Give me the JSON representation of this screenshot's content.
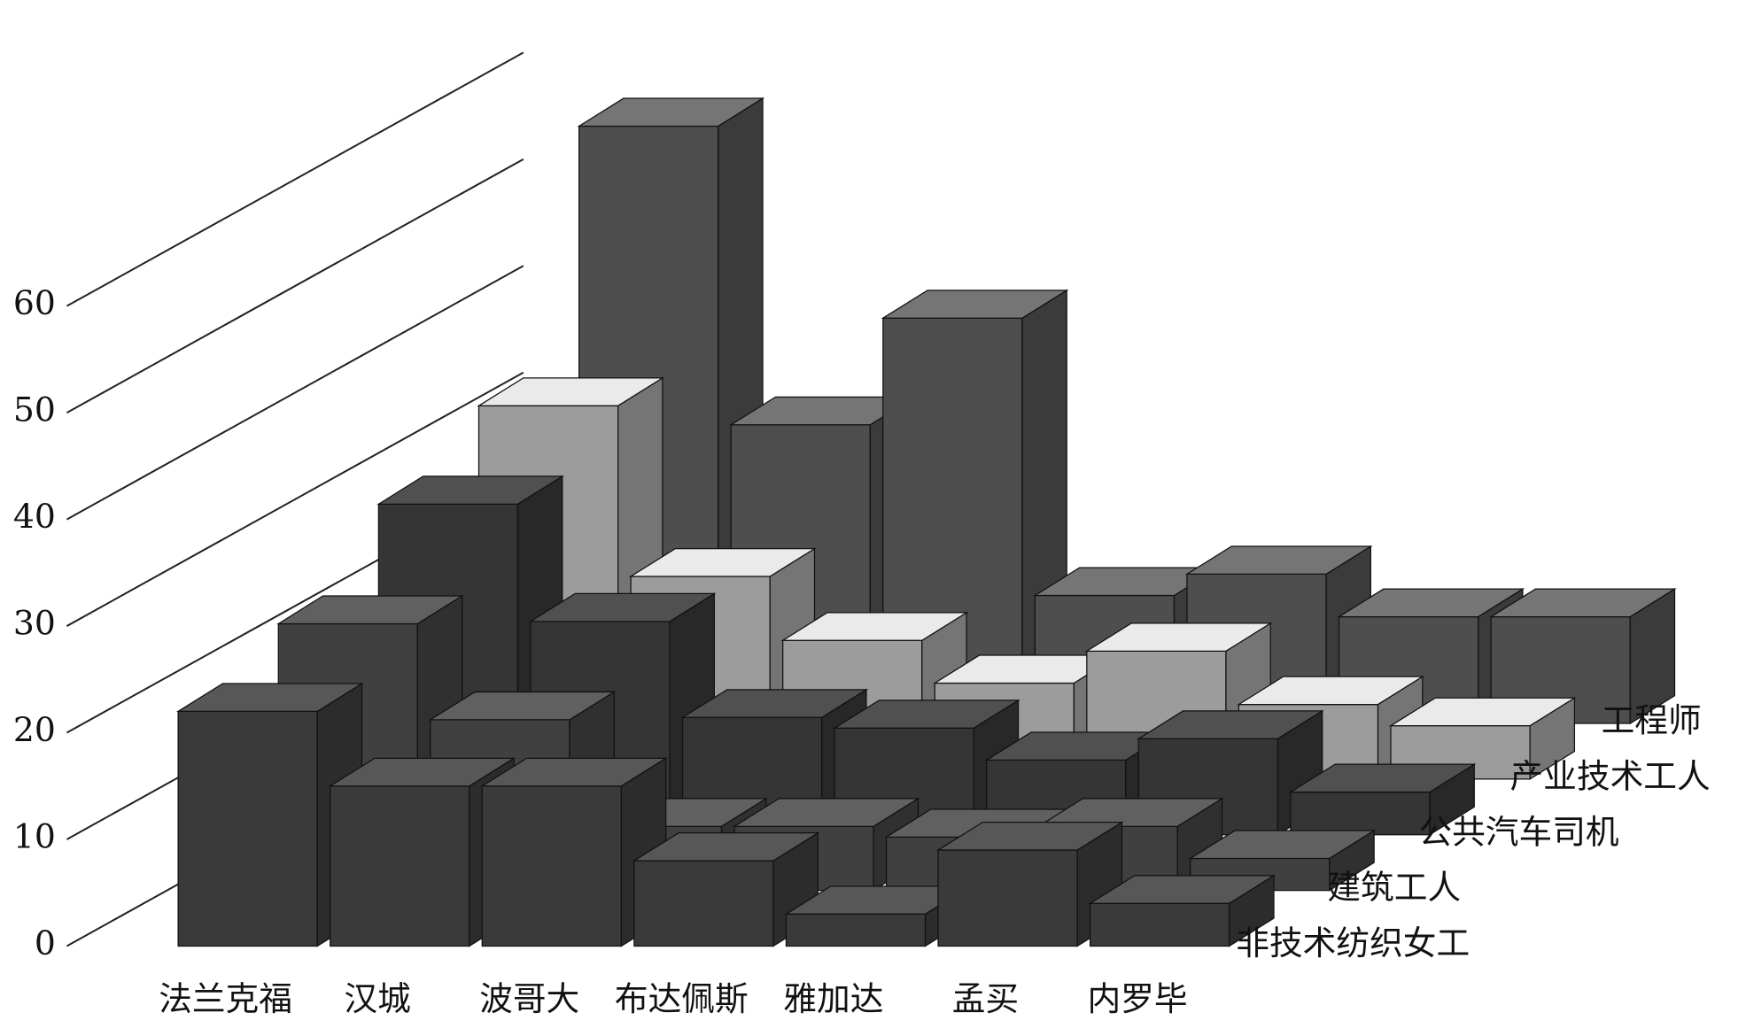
{
  "chart_data": {
    "type": "bar",
    "categories": [
      "法兰克福",
      "汉城",
      "波哥大",
      "布达佩斯",
      "雅加达",
      "孟买",
      "内罗毕"
    ],
    "series": [
      {
        "name": "非技术纺织女工",
        "color": "#3a3a3a",
        "values": [
          22,
          15,
          15,
          8,
          3,
          9,
          4
        ]
      },
      {
        "name": "建筑工人",
        "color": "#404040",
        "values": [
          25,
          16,
          6,
          6,
          5,
          6,
          3
        ]
      },
      {
        "name": "公共汽车司机",
        "color": "#353535",
        "values": [
          31,
          20,
          11,
          10,
          7,
          9,
          4
        ]
      },
      {
        "name": "产业技术工人",
        "color": "#9c9c9c",
        "values": [
          35,
          19,
          13,
          9,
          12,
          7,
          5
        ]
      },
      {
        "name": "工程师",
        "color": "#4e4e4e",
        "values": [
          56,
          28,
          38,
          12,
          14,
          10,
          10
        ]
      }
    ],
    "ylim": [
      0,
      60
    ],
    "yticks": [
      0,
      10,
      20,
      30,
      40,
      50,
      60
    ],
    "grid": true
  }
}
